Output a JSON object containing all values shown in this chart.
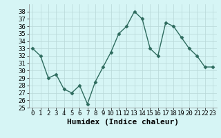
{
  "x": [
    0,
    1,
    2,
    3,
    4,
    5,
    6,
    7,
    8,
    9,
    10,
    11,
    12,
    13,
    14,
    15,
    16,
    17,
    18,
    19,
    20,
    21,
    22,
    23
  ],
  "y": [
    33,
    32,
    29,
    29.5,
    27.5,
    27,
    28,
    25.5,
    28.5,
    30.5,
    32.5,
    35,
    36,
    38,
    37,
    33,
    32,
    36.5,
    36,
    34.5,
    33,
    32,
    30.5,
    30.5
  ],
  "line_color": "#2e6b5e",
  "marker": "D",
  "marker_size": 2.5,
  "bg_color": "#d6f5f5",
  "grid_color": "#b8d8d8",
  "xlabel": "Humidex (Indice chaleur)",
  "xlim": [
    -0.5,
    23.5
  ],
  "ylim": [
    25,
    39
  ],
  "yticks": [
    25,
    26,
    27,
    28,
    29,
    30,
    31,
    32,
    33,
    34,
    35,
    36,
    37,
    38
  ],
  "xticks": [
    0,
    1,
    2,
    3,
    4,
    5,
    6,
    7,
    8,
    9,
    10,
    11,
    12,
    13,
    14,
    15,
    16,
    17,
    18,
    19,
    20,
    21,
    22,
    23
  ],
  "tick_label_fontsize": 6.5,
  "xlabel_fontsize": 8,
  "linewidth": 1.0
}
